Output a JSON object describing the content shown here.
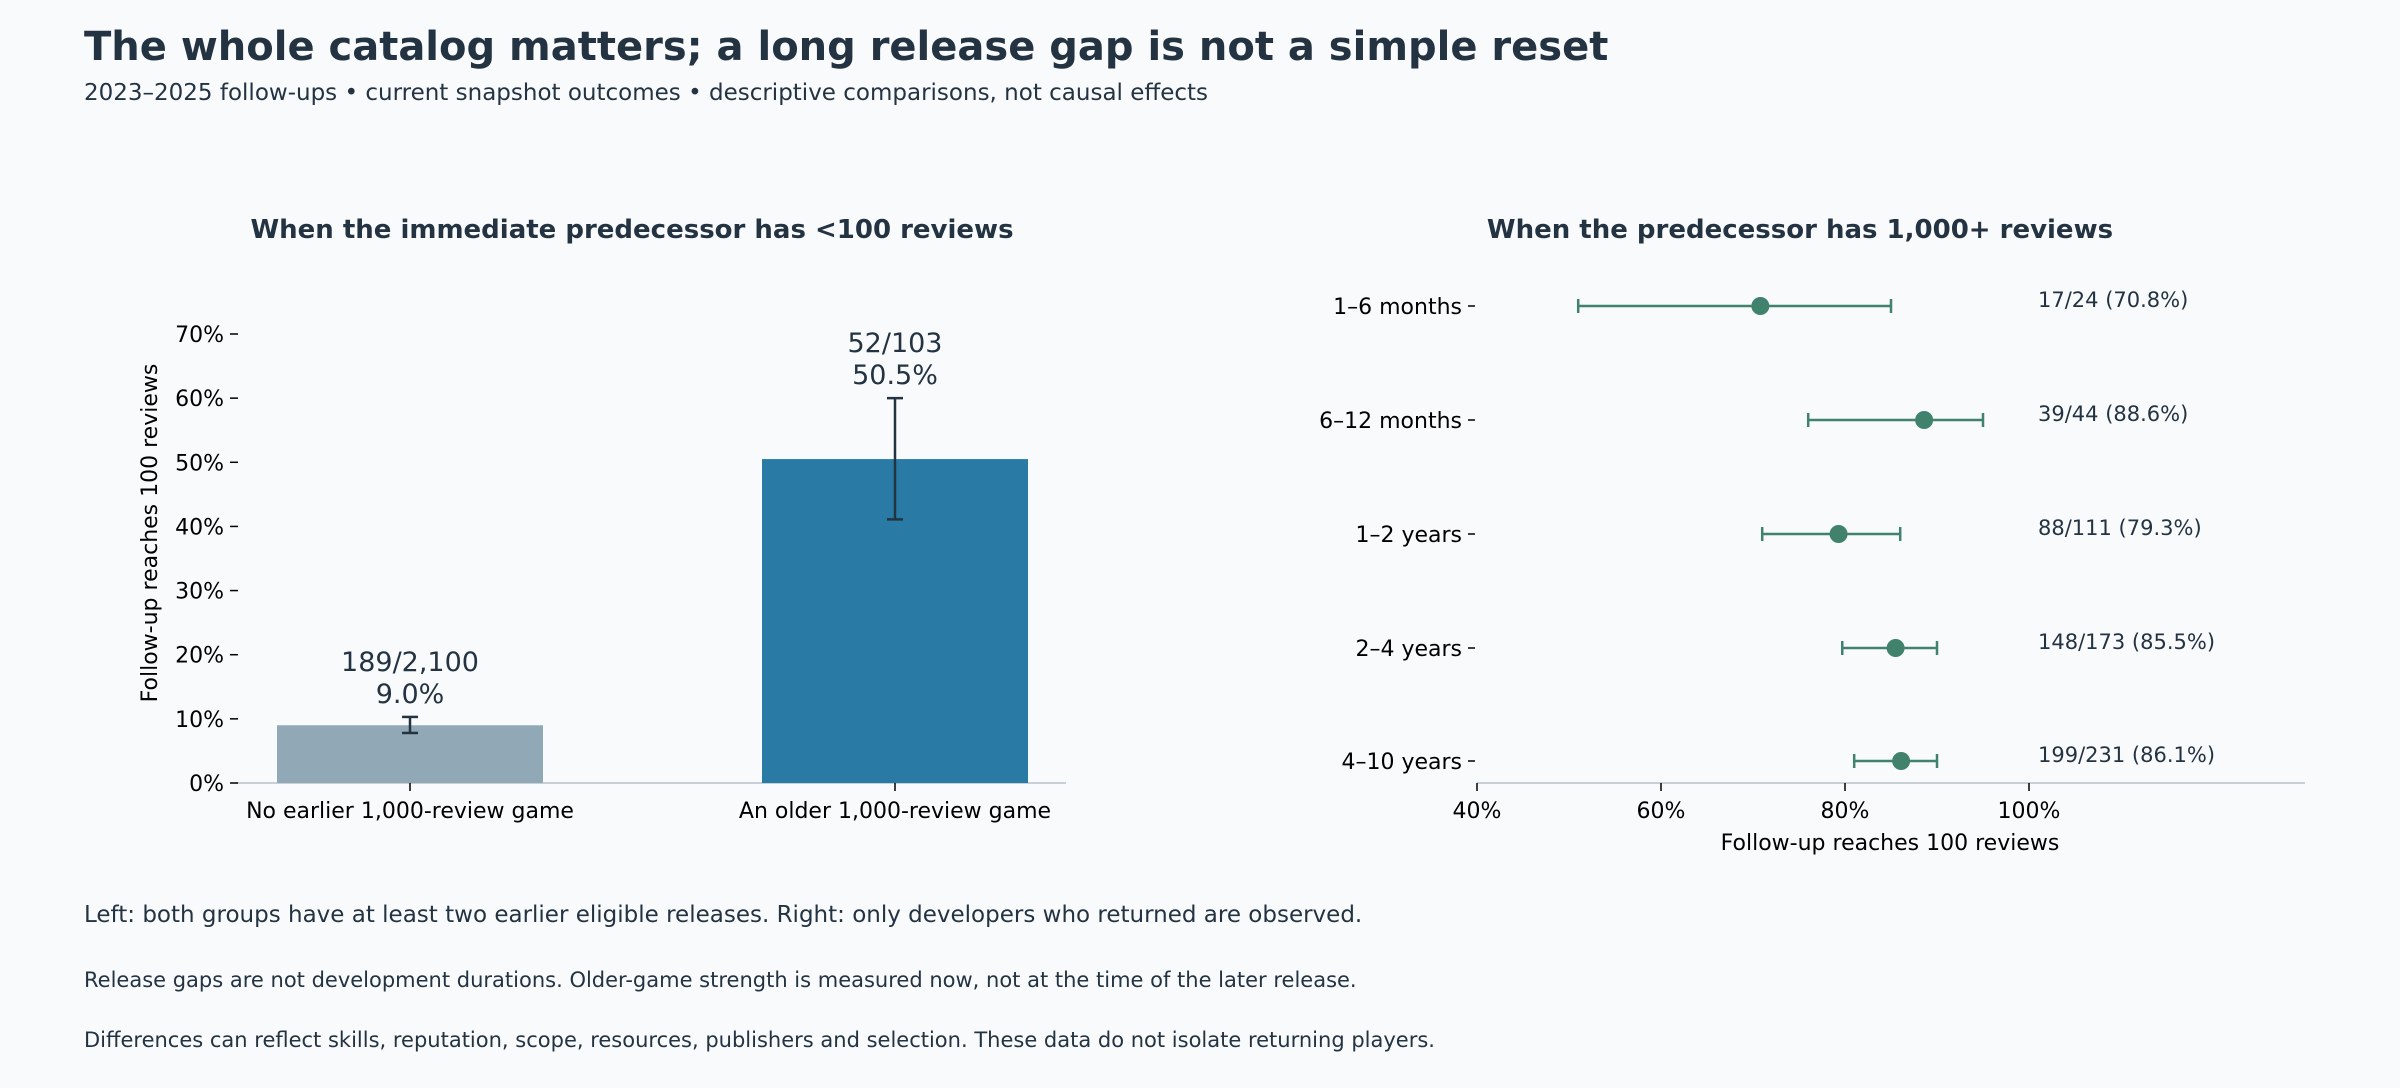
{
  "header": {
    "title": "The whole catalog matters; a long release gap is not a simple reset",
    "subtitle": "2023–2025 follow-ups • current snapshot outcomes • descriptive comparisons, not causal effects"
  },
  "notes": [
    "Left: both groups have at least two earlier eligible releases. Right: only developers who returned are observed.",
    "Release gaps are not development durations. Older-game strength is measured now, not at the time of the later release.",
    "Differences can reflect skills, reputation, scope, resources, publishers and selection. These data do not isolate returning players."
  ],
  "chart_data": [
    {
      "type": "bar",
      "title": "When the immediate predecessor has <100 reviews",
      "ylabel": "Follow-up reaches 100 reviews",
      "ylim": [
        0,
        70
      ],
      "yticks": [
        0,
        10,
        20,
        30,
        40,
        50,
        60,
        70
      ],
      "ytick_labels": [
        "0%",
        "10%",
        "20%",
        "30%",
        "40%",
        "50%",
        "60%",
        "70%"
      ],
      "categories": [
        "No earlier 1,000-review game",
        "An older 1,000-review game"
      ],
      "values": [
        9.0,
        50.5
      ],
      "ci_low": [
        7.8,
        41.1
      ],
      "ci_high": [
        10.3,
        60.0
      ],
      "count_labels": [
        "189/2,100",
        "52/103"
      ],
      "value_labels": [
        "9.0%",
        "50.5%"
      ],
      "colors": [
        "#91a8b6",
        "#297ba6"
      ]
    },
    {
      "type": "scatter",
      "title": "When the predecessor has 1,000+ reviews",
      "xlabel": "Follow-up reaches 100 reviews",
      "xlim": [
        40,
        100
      ],
      "xticks": [
        40,
        60,
        80,
        100
      ],
      "xtick_labels": [
        "40%",
        "60%",
        "80%",
        "100%"
      ],
      "categories": [
        "1–6 months",
        "6–12 months",
        "1–2 years",
        "2–4 years",
        "4–10 years"
      ],
      "values": [
        70.8,
        88.6,
        79.3,
        85.5,
        86.1
      ],
      "ci_low": [
        51.0,
        76.0,
        71.0,
        79.7,
        81.0
      ],
      "ci_high": [
        85.0,
        95.0,
        86.0,
        90.0,
        90.0
      ],
      "annotations": [
        "17/24 (70.8%)",
        "39/44 (88.6%)",
        "88/111 (79.3%)",
        "148/173 (85.5%)",
        "199/231 (86.1%)"
      ],
      "color": "#41826c"
    }
  ]
}
